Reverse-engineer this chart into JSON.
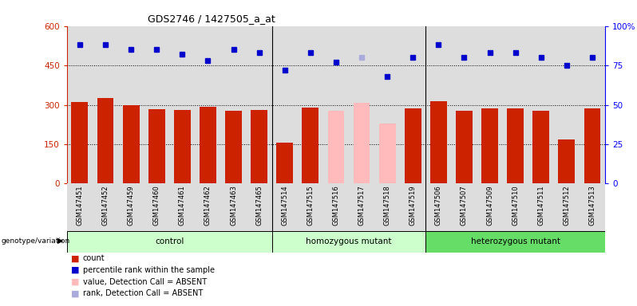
{
  "title": "GDS2746 / 1427505_a_at",
  "samples": [
    "GSM147451",
    "GSM147452",
    "GSM147459",
    "GSM147460",
    "GSM147461",
    "GSM147462",
    "GSM147463",
    "GSM147465",
    "GSM147514",
    "GSM147515",
    "GSM147516",
    "GSM147517",
    "GSM147518",
    "GSM147519",
    "GSM147506",
    "GSM147507",
    "GSM147509",
    "GSM147510",
    "GSM147511",
    "GSM147512",
    "GSM147513"
  ],
  "counts": [
    310,
    325,
    298,
    283,
    280,
    292,
    278,
    280,
    157,
    290,
    278,
    308,
    230,
    285,
    315,
    277,
    285,
    285,
    278,
    168,
    285
  ],
  "absent_mask": [
    false,
    false,
    false,
    false,
    false,
    false,
    false,
    false,
    false,
    false,
    true,
    true,
    true,
    false,
    false,
    false,
    false,
    false,
    false,
    false,
    false
  ],
  "percentile_ranks": [
    88,
    88,
    85,
    85,
    82,
    78,
    85,
    83,
    72,
    83,
    77,
    80,
    68,
    80,
    88,
    80,
    83,
    83,
    80,
    75,
    80
  ],
  "absent_rank_mask": [
    false,
    false,
    false,
    false,
    false,
    false,
    false,
    false,
    false,
    false,
    false,
    true,
    false,
    false,
    false,
    false,
    false,
    false,
    false,
    false,
    false
  ],
  "group_labels": [
    "control",
    "homozygous mutant",
    "heterozygous mutant"
  ],
  "group_counts": [
    8,
    6,
    7
  ],
  "group_colors_light": [
    "#ccffcc",
    "#ccffcc",
    "#66dd66"
  ],
  "bar_color_present": "#cc2200",
  "bar_color_absent": "#ffbbbb",
  "dot_color_present": "#0000cc",
  "dot_color_absent": "#aaaadd",
  "ylim_left": [
    0,
    600
  ],
  "ylim_right": [
    0,
    100
  ],
  "yticks_left": [
    0,
    150,
    300,
    450,
    600
  ],
  "ytick_labels_left": [
    "0",
    "150",
    "300",
    "450",
    "600"
  ],
  "yticks_right": [
    0,
    25,
    50,
    75,
    100
  ],
  "ytick_labels_right": [
    "0",
    "25",
    "50",
    "75",
    "100%"
  ],
  "hlines": [
    150,
    300,
    450
  ],
  "plot_bg_color": "#dddddd",
  "legend_items": [
    [
      "#cc2200",
      "count"
    ],
    [
      "#0000cc",
      "percentile rank within the sample"
    ],
    [
      "#ffbbbb",
      "value, Detection Call = ABSENT"
    ],
    [
      "#aaaadd",
      "rank, Detection Call = ABSENT"
    ]
  ]
}
